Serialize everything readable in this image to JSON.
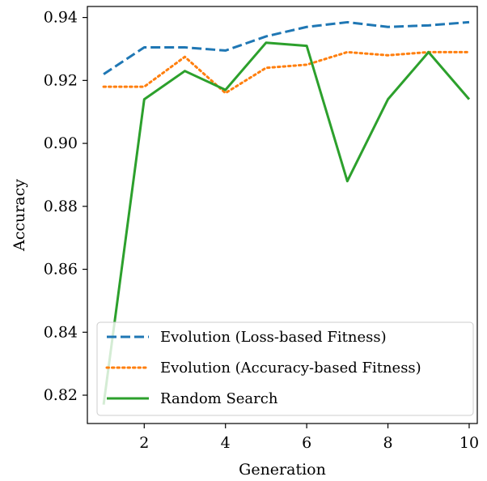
{
  "chart_data": {
    "type": "line",
    "xlabel": "Generation",
    "ylabel": "Accuracy",
    "xlim": [
      0.6,
      10.2
    ],
    "ylim": [
      0.811,
      0.9435
    ],
    "x": [
      1,
      2,
      3,
      4,
      5,
      6,
      7,
      8,
      9,
      10
    ],
    "xticks": [
      2,
      4,
      6,
      8,
      10
    ],
    "yticks": [
      0.82,
      0.84,
      0.86,
      0.88,
      0.9,
      0.92,
      0.94
    ],
    "ytick_labels": [
      "0.82",
      "0.84",
      "0.86",
      "0.88",
      "0.90",
      "0.92",
      "0.94"
    ],
    "grid": false,
    "legend_position": "bottom-left",
    "series": [
      {
        "name": "Evolution (Loss-based Fitness)",
        "color": "#1f77b4",
        "style": "dashed",
        "values": [
          0.922,
          0.9305,
          0.9305,
          0.9295,
          0.934,
          0.937,
          0.9385,
          0.937,
          0.9375,
          0.9385
        ]
      },
      {
        "name": "Evolution (Accuracy-based Fitness)",
        "color": "#ff7f0e",
        "style": "dotted",
        "values": [
          0.918,
          0.918,
          0.9275,
          0.916,
          0.924,
          0.925,
          0.929,
          0.928,
          0.929,
          0.929
        ]
      },
      {
        "name": "Random Search",
        "color": "#2ca02c",
        "style": "solid",
        "values": [
          0.817,
          0.914,
          0.923,
          0.917,
          0.932,
          0.931,
          0.888,
          0.914,
          0.929,
          0.914
        ]
      }
    ]
  }
}
